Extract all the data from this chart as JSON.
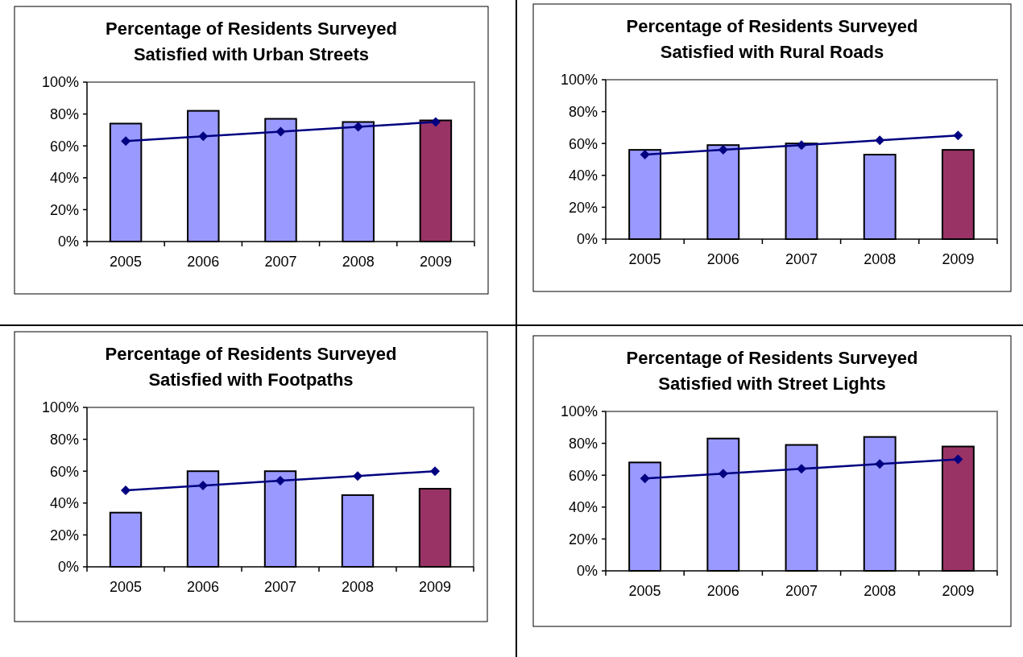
{
  "chart_data": [
    {
      "type": "bar",
      "title": "Percentage of Residents Surveyed\nSatisfied with Urban Streets",
      "categories": [
        "2005",
        "2006",
        "2007",
        "2008",
        "2009"
      ],
      "ylim": [
        0,
        100
      ],
      "yticks": [
        {
          "value": 0,
          "label": "0%"
        },
        {
          "value": 20,
          "label": "20%"
        },
        {
          "value": 40,
          "label": "40%"
        },
        {
          "value": 60,
          "label": "60%"
        },
        {
          "value": 80,
          "label": "80%"
        },
        {
          "value": 100,
          "label": "100%"
        }
      ],
      "grid": false,
      "marker": "diamond",
      "series": [
        {
          "values": [
            74,
            82,
            77,
            75,
            76
          ],
          "colors": [
            "#9999ff",
            "#9999ff",
            "#9999ff",
            "#9999ff",
            "#993366"
          ]
        },
        {
          "type": "line",
          "values": [
            63,
            66,
            69,
            72,
            75
          ],
          "color": "#000080"
        }
      ]
    },
    {
      "type": "bar",
      "title": "Percentage of Residents Surveyed\nSatisfied with Rural Roads",
      "categories": [
        "2005",
        "2006",
        "2007",
        "2008",
        "2009"
      ],
      "ylim": [
        0,
        100
      ],
      "yticks": [
        {
          "value": 0,
          "label": "0%"
        },
        {
          "value": 20,
          "label": "20%"
        },
        {
          "value": 40,
          "label": "40%"
        },
        {
          "value": 60,
          "label": "60%"
        },
        {
          "value": 80,
          "label": "80%"
        },
        {
          "value": 100,
          "label": "100%"
        }
      ],
      "grid": false,
      "marker": "diamond",
      "series": [
        {
          "values": [
            56,
            59,
            60,
            53,
            56
          ],
          "colors": [
            "#9999ff",
            "#9999ff",
            "#9999ff",
            "#9999ff",
            "#993366"
          ]
        },
        {
          "type": "line",
          "values": [
            53,
            56,
            59,
            62,
            65
          ],
          "color": "#000080"
        }
      ]
    },
    {
      "type": "bar",
      "title": "Percentage of Residents Surveyed\nSatisfied with Footpaths",
      "categories": [
        "2005",
        "2006",
        "2007",
        "2008",
        "2009"
      ],
      "ylim": [
        0,
        100
      ],
      "yticks": [
        {
          "value": 0,
          "label": "0%"
        },
        {
          "value": 20,
          "label": "20%"
        },
        {
          "value": 40,
          "label": "40%"
        },
        {
          "value": 60,
          "label": "60%"
        },
        {
          "value": 80,
          "label": "80%"
        },
        {
          "value": 100,
          "label": "100%"
        }
      ],
      "grid": false,
      "marker": "diamond",
      "series": [
        {
          "values": [
            34,
            60,
            60,
            45,
            49
          ],
          "colors": [
            "#9999ff",
            "#9999ff",
            "#9999ff",
            "#9999ff",
            "#993366"
          ]
        },
        {
          "type": "line",
          "values": [
            48,
            51,
            54,
            57,
            60
          ],
          "color": "#000080"
        }
      ]
    },
    {
      "type": "bar",
      "title": "Percentage of Residents Surveyed\nSatisfied with Street Lights",
      "categories": [
        "2005",
        "2006",
        "2007",
        "2008",
        "2009"
      ],
      "ylim": [
        0,
        100
      ],
      "yticks": [
        {
          "value": 0,
          "label": "0%"
        },
        {
          "value": 20,
          "label": "20%"
        },
        {
          "value": 40,
          "label": "40%"
        },
        {
          "value": 60,
          "label": "60%"
        },
        {
          "value": 80,
          "label": "80%"
        },
        {
          "value": 100,
          "label": "100%"
        }
      ],
      "grid": false,
      "marker": "diamond",
      "series": [
        {
          "values": [
            68,
            83,
            79,
            84,
            78
          ],
          "colors": [
            "#9999ff",
            "#9999ff",
            "#9999ff",
            "#9999ff",
            "#993366"
          ]
        },
        {
          "type": "line",
          "values": [
            58,
            61,
            64,
            67,
            70
          ],
          "color": "#000080"
        }
      ]
    }
  ]
}
